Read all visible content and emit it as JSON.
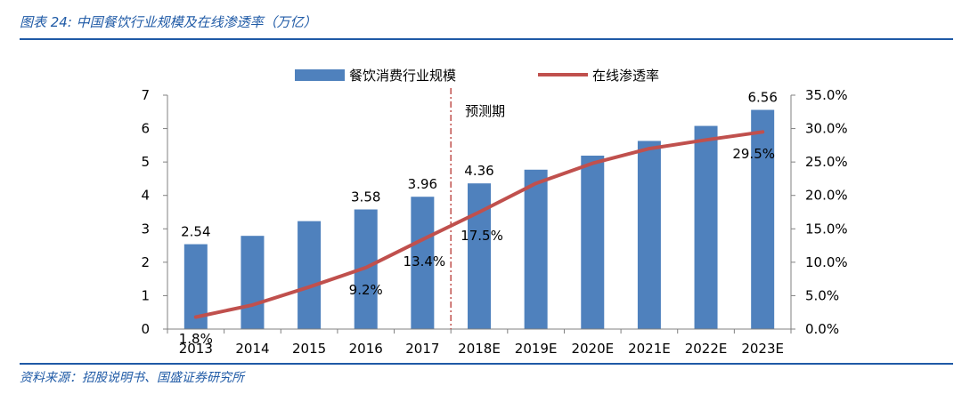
{
  "figure": {
    "title": "图表 24:  中国餐饮行业规模及在线渗透率（万亿）",
    "source": "资料来源：招股说明书、国盛证券研究所"
  },
  "chart_data": {
    "type": "bar",
    "title": "中国餐饮行业规模及在线渗透率（万亿）",
    "categories": [
      "2013",
      "2014",
      "2015",
      "2016",
      "2017",
      "2018E",
      "2019E",
      "2020E",
      "2021E",
      "2022E",
      "2023E"
    ],
    "series": [
      {
        "name": "餐饮消费行业规模",
        "type": "bar",
        "axis": "left",
        "color": "#4f81bd",
        "values": [
          2.54,
          2.79,
          3.23,
          3.58,
          3.96,
          4.36,
          4.77,
          5.19,
          5.63,
          6.08,
          6.56
        ],
        "labels": [
          "2.54",
          "",
          "",
          "3.58",
          "3.96",
          "4.36",
          "",
          "",
          "",
          "",
          "6.56"
        ]
      },
      {
        "name": "在线渗透率",
        "type": "line",
        "axis": "right",
        "color": "#c0504d",
        "values": [
          1.8,
          3.6,
          6.3,
          9.2,
          13.4,
          17.5,
          21.8,
          24.8,
          27.0,
          28.3,
          29.5
        ],
        "labels": [
          "1.8%",
          "",
          "",
          "9.2%",
          "13.4%",
          "17.5%",
          "",
          "",
          "",
          "",
          "29.5%"
        ]
      }
    ],
    "y_left": {
      "min": 0,
      "max": 7,
      "ticks": [
        "0",
        "1",
        "2",
        "3",
        "4",
        "5",
        "6",
        "7"
      ]
    },
    "y_right": {
      "min": 0,
      "max": 35,
      "ticks": [
        "0.0%",
        "5.0%",
        "10.0%",
        "15.0%",
        "20.0%",
        "25.0%",
        "30.0%",
        "35.0%"
      ]
    },
    "forecast_marker": {
      "after_category": "2017",
      "label": "预测期",
      "color": "#c0504d"
    },
    "legend_position": "top",
    "grid": false
  }
}
